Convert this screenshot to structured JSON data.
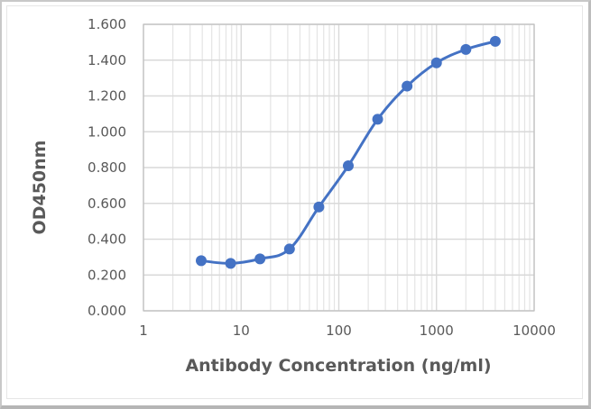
{
  "chart_data": {
    "type": "line",
    "title": "",
    "xlabel": "Antibody Concentration (ng/ml)",
    "ylabel": "OD450nm",
    "xscale": "log",
    "xlim": [
      1,
      10000
    ],
    "ylim": [
      0,
      1.6
    ],
    "x_ticks": [
      "1",
      "10",
      "100",
      "1000",
      "10000"
    ],
    "y_ticks": [
      "0.000",
      "0.200",
      "0.400",
      "0.600",
      "0.800",
      "1.000",
      "1.200",
      "1.400",
      "1.600"
    ],
    "grid": true,
    "legend": null,
    "series": [
      {
        "name": "OD450nm",
        "color": "#4472c4",
        "marker": "circle",
        "smooth": true,
        "x": [
          3.9,
          7.8,
          15.6,
          31.25,
          62.5,
          125,
          250,
          500,
          1000,
          2000,
          4000
        ],
        "y": [
          0.28,
          0.265,
          0.29,
          0.345,
          0.58,
          0.81,
          1.07,
          1.255,
          1.385,
          1.46,
          1.505
        ]
      }
    ]
  },
  "colors": {
    "series": "#4472c4",
    "grid": "#d9d9d9",
    "text": "#595959"
  }
}
